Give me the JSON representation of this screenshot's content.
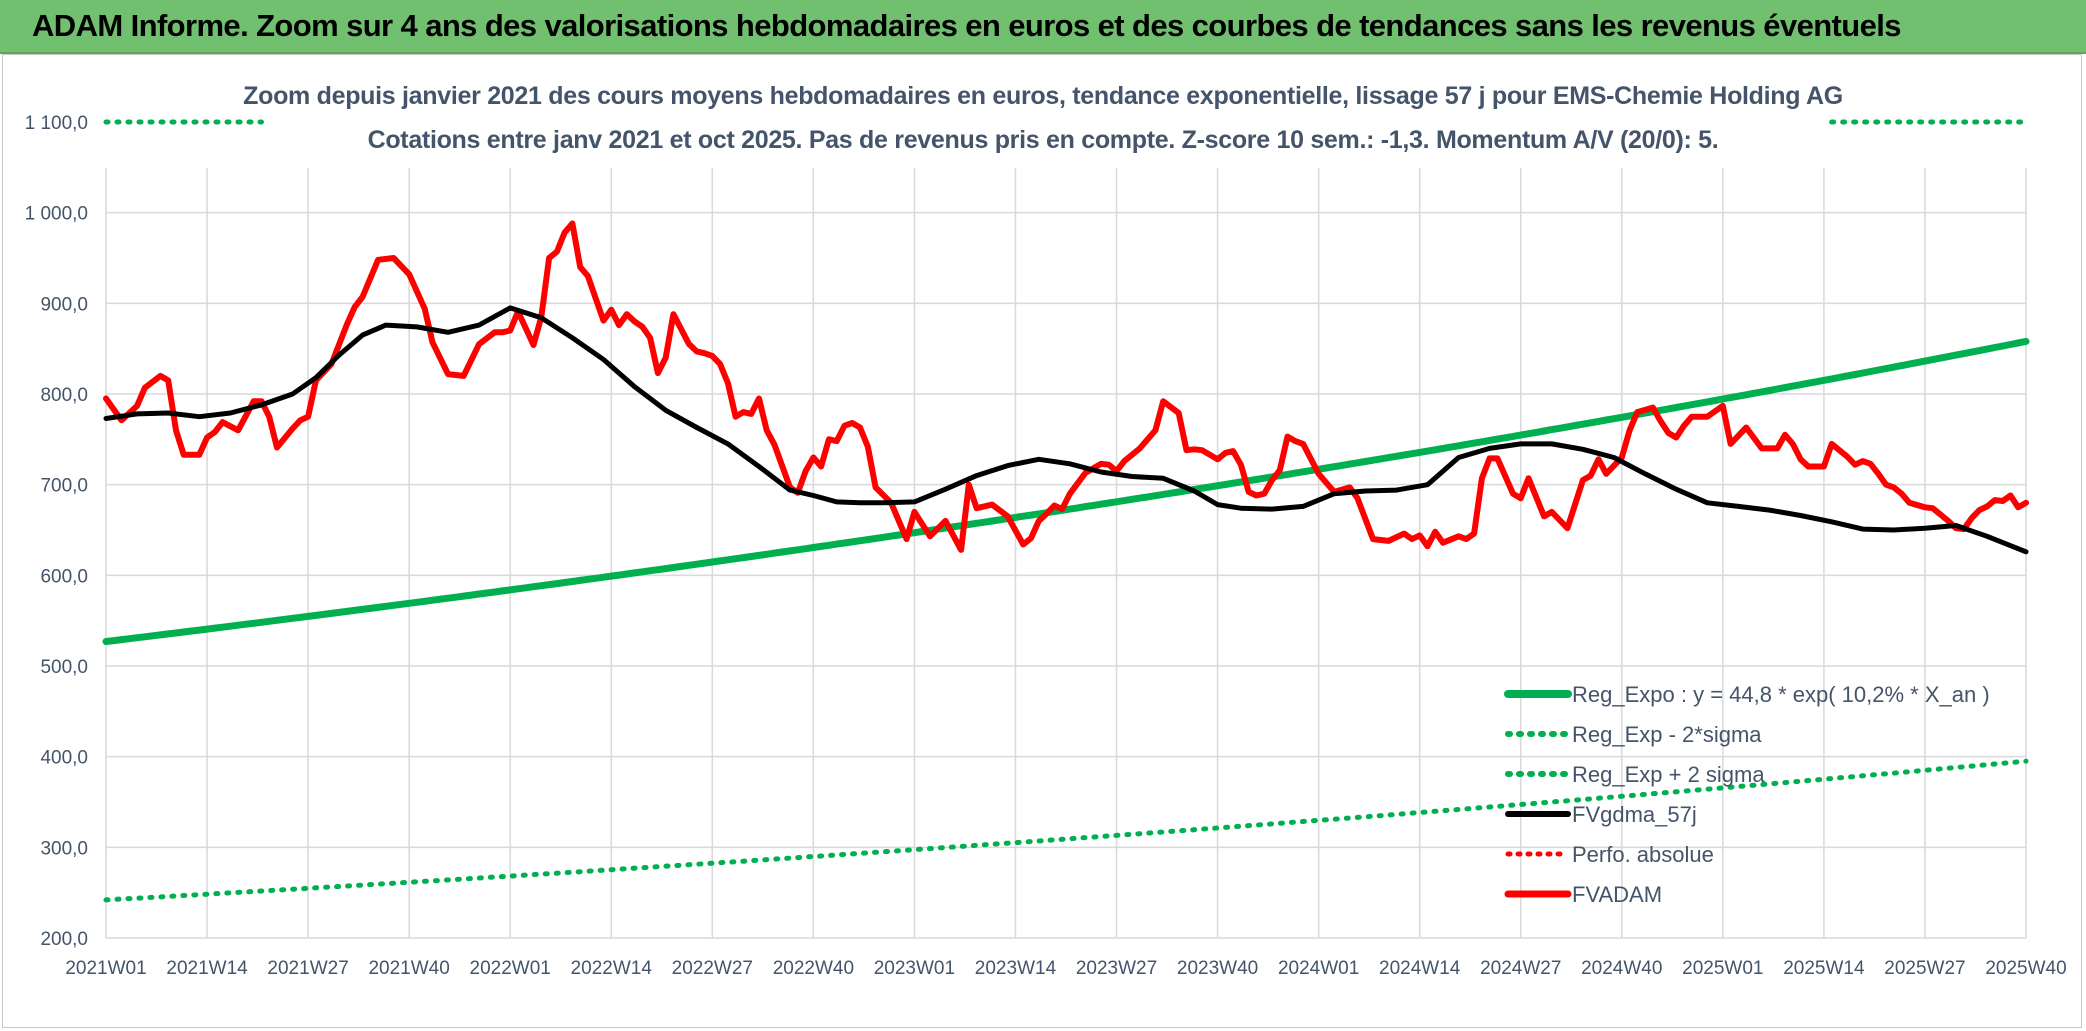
{
  "header": {
    "title": "ADAM Informe. Zoom sur 4 ans des valorisations hebdomadaires en euros et des courbes de tendances sans les revenus éventuels"
  },
  "chart_data": {
    "type": "line",
    "title": "Zoom depuis janvier 2021 des cours moyens hebdomadaires en euros, tendance exponentielle, lissage 57 j pour EMS-Chemie Holding AG",
    "subtitle": "Cotations entre janv 2021 et oct 2025. Pas de revenus pris en compte. Z-score 10 sem.: -1,3. Momentum A/V (20/0): 5.",
    "xlabel": "",
    "ylabel": "",
    "ylim": [
      200,
      1100
    ],
    "yticks": [
      200,
      300,
      400,
      500,
      600,
      700,
      800,
      900,
      1000,
      1100
    ],
    "ytick_labels": [
      "200,0",
      "300,0",
      "400,0",
      "500,0",
      "600,0",
      "700,0",
      "800,0",
      "900,0",
      "1 000,0",
      "1 100,0"
    ],
    "x_range_weeks": [
      0,
      247
    ],
    "xtick_weeks": [
      0,
      13,
      26,
      39,
      52,
      65,
      78,
      91,
      104,
      117,
      130,
      143,
      156,
      169,
      182,
      195,
      208,
      221,
      234,
      247
    ],
    "xtick_labels": [
      "2021W01",
      "2021W14",
      "2021W27",
      "2021W40",
      "2022W01",
      "2022W14",
      "2022W27",
      "2022W40",
      "2023W01",
      "2023W14",
      "2023W27",
      "2023W40",
      "2024W01",
      "2024W14",
      "2024W27",
      "2024W40",
      "2025W01",
      "2025W14",
      "2025W27",
      "2025W40"
    ],
    "grid": true,
    "legend_position": "bottom-right",
    "series": [
      {
        "name": "Reg_Expo : y = 44,8 * exp( 10,2% *  X_an )",
        "style": "solid",
        "color": "#00b050",
        "x": [
          0,
          247
        ],
        "y": [
          527,
          858
        ],
        "curve": "exponential"
      },
      {
        "name": "Reg_Exp - 2*sigma",
        "style": "dotted",
        "color": "#00b050",
        "x": [
          0,
          247
        ],
        "y": [
          242,
          395
        ],
        "curve": "exponential"
      },
      {
        "name": "Reg_Exp + 2 sigma",
        "style": "dotted",
        "color": "#00b050",
        "x": [
          0,
          20,
          222,
          247
        ],
        "y": [
          1100,
          1100,
          1100,
          1100
        ],
        "segments": [
          [
            0,
            20
          ],
          [
            222,
            247
          ]
        ]
      },
      {
        "name": "FVgdma_57j",
        "style": "solid",
        "color": "#000000",
        "x": [
          0,
          4,
          8,
          12,
          16,
          20,
          24,
          27,
          30,
          33,
          36,
          40,
          44,
          48,
          52,
          56,
          60,
          64,
          68,
          72,
          76,
          80,
          84,
          88,
          91,
          94,
          97,
          100,
          104,
          108,
          112,
          116,
          120,
          124,
          128,
          132,
          136,
          140,
          143,
          146,
          150,
          154,
          158,
          162,
          166,
          170,
          174,
          178,
          182,
          186,
          190,
          194,
          198,
          202,
          206,
          210,
          214,
          218,
          222,
          226,
          230,
          234,
          238,
          242,
          247
        ],
        "y": [
          773,
          778,
          779,
          775,
          779,
          788,
          800,
          818,
          843,
          865,
          876,
          874,
          868,
          876,
          895,
          884,
          862,
          838,
          808,
          782,
          763,
          745,
          720,
          694,
          688,
          681,
          680,
          680,
          681,
          695,
          710,
          721,
          728,
          723,
          714,
          709,
          707,
          693,
          678,
          674,
          673,
          676,
          690,
          693,
          694,
          700,
          730,
          740,
          745,
          745,
          739,
          730,
          712,
          695,
          680,
          676,
          672,
          666,
          659,
          651,
          650,
          652,
          655,
          643,
          626
        ]
      },
      {
        "name": "Perfo. absolue",
        "style": "dotted",
        "color": "#ff0000",
        "x": [],
        "y": []
      },
      {
        "name": "FVADAM",
        "style": "solid",
        "color": "#ff0000",
        "x": [
          0,
          2,
          4,
          5,
          7,
          8,
          9,
          10,
          12,
          13,
          14,
          15,
          17,
          19,
          20,
          21,
          22,
          24,
          25,
          26,
          27,
          29,
          31,
          32,
          33,
          35,
          37,
          39,
          41,
          42,
          44,
          46,
          48,
          50,
          51,
          52,
          53,
          55,
          56,
          57,
          58,
          59,
          60,
          61,
          62,
          64,
          65,
          66,
          67,
          68,
          69,
          70,
          71,
          72,
          73,
          75,
          76,
          77,
          78,
          79,
          80,
          81,
          82,
          83,
          84,
          85,
          86,
          88,
          89,
          90,
          91,
          92,
          93,
          94,
          95,
          96,
          97,
          98,
          99,
          101,
          103,
          104,
          106,
          108,
          110,
          111,
          112,
          114,
          116,
          118,
          119,
          120,
          121,
          122,
          123,
          124,
          126,
          128,
          129,
          130,
          131,
          133,
          134,
          135,
          136,
          138,
          139,
          140,
          141,
          142,
          143,
          144,
          145,
          146,
          147,
          148,
          149,
          150,
          151,
          152,
          153,
          154,
          156,
          158,
          160,
          161,
          163,
          165,
          167,
          168,
          169,
          170,
          171,
          172,
          174,
          175,
          176,
          177,
          178,
          179,
          181,
          182,
          183,
          185,
          186,
          188,
          190,
          191,
          192,
          193,
          195,
          196,
          197,
          199,
          200,
          201,
          202,
          203,
          204,
          206,
          208,
          209,
          211,
          213,
          215,
          216,
          217,
          218,
          219,
          221,
          222,
          224,
          225,
          226,
          227,
          228,
          229,
          230,
          231,
          232,
          234,
          235,
          237,
          238,
          239,
          240,
          241,
          242,
          243,
          244,
          245,
          246,
          247
        ],
        "y": [
          795,
          771,
          787,
          807,
          820,
          815,
          760,
          733,
          733,
          752,
          758,
          769,
          760,
          792,
          792,
          775,
          741,
          762,
          771,
          775,
          815,
          833,
          877,
          896,
          907,
          948,
          950,
          932,
          894,
          857,
          822,
          820,
          855,
          868,
          868,
          870,
          891,
          854,
          885,
          950,
          957,
          978,
          988,
          940,
          930,
          881,
          893,
          876,
          888,
          880,
          874,
          862,
          823,
          840,
          888,
          855,
          847,
          845,
          842,
          833,
          812,
          775,
          780,
          778,
          795,
          760,
          744,
          697,
          691,
          715,
          730,
          720,
          750,
          748,
          765,
          768,
          763,
          742,
          697,
          680,
          640,
          670,
          643,
          660,
          628,
          700,
          674,
          678,
          665,
          634,
          641,
          660,
          668,
          677,
          673,
          690,
          713,
          723,
          722,
          715,
          726,
          740,
          750,
          760,
          792,
          779,
          738,
          739,
          738,
          733,
          728,
          735,
          737,
          722,
          692,
          688,
          690,
          705,
          716,
          753,
          748,
          745,
          712,
          692,
          697,
          685,
          640,
          638,
          646,
          640,
          644,
          632,
          648,
          636,
          643,
          640,
          646,
          707,
          729,
          729,
          690,
          685,
          707,
          665,
          670,
          652,
          705,
          710,
          728,
          712,
          730,
          760,
          780,
          785,
          770,
          757,
          752,
          765,
          775,
          775,
          787,
          745,
          763,
          740,
          740,
          755,
          745,
          728,
          720,
          720,
          745,
          731,
          722,
          726,
          723,
          712,
          700,
          697,
          690,
          680,
          675,
          674,
          660,
          652,
          651,
          663,
          672,
          676,
          683,
          682,
          688,
          675,
          680
        ]
      }
    ]
  },
  "colors": {
    "banner": "#70c070",
    "grid": "#d9d9d9",
    "axis_text": "#44546a",
    "trend": "#00b050",
    "mma": "#000000",
    "price": "#ff0000"
  }
}
